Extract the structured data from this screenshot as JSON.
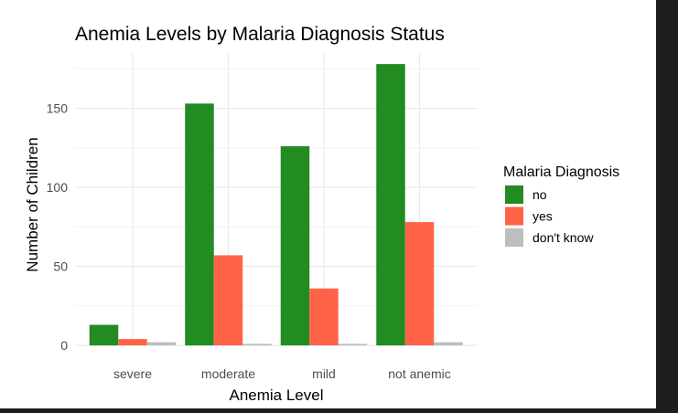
{
  "chart_data": {
    "type": "bar",
    "title": "Anemia Levels by Malaria Diagnosis Status",
    "xlabel": "Anemia Level",
    "ylabel": "Number of Children",
    "categories": [
      "severe",
      "moderate",
      "mild",
      "not anemic"
    ],
    "series": [
      {
        "name": "no",
        "color": "#228b22",
        "values": [
          13,
          153,
          126,
          178
        ]
      },
      {
        "name": "yes",
        "color": "#ff6347",
        "values": [
          4,
          57,
          36,
          78
        ]
      },
      {
        "name": "don't know",
        "color": "#bebebe",
        "values": [
          2,
          1,
          1,
          2
        ]
      }
    ],
    "ylim": [
      0,
      185
    ],
    "yticks": [
      0,
      50,
      100,
      150
    ],
    "grid": true,
    "legend": {
      "title": "Malaria Diagnosis",
      "position": "right"
    }
  }
}
